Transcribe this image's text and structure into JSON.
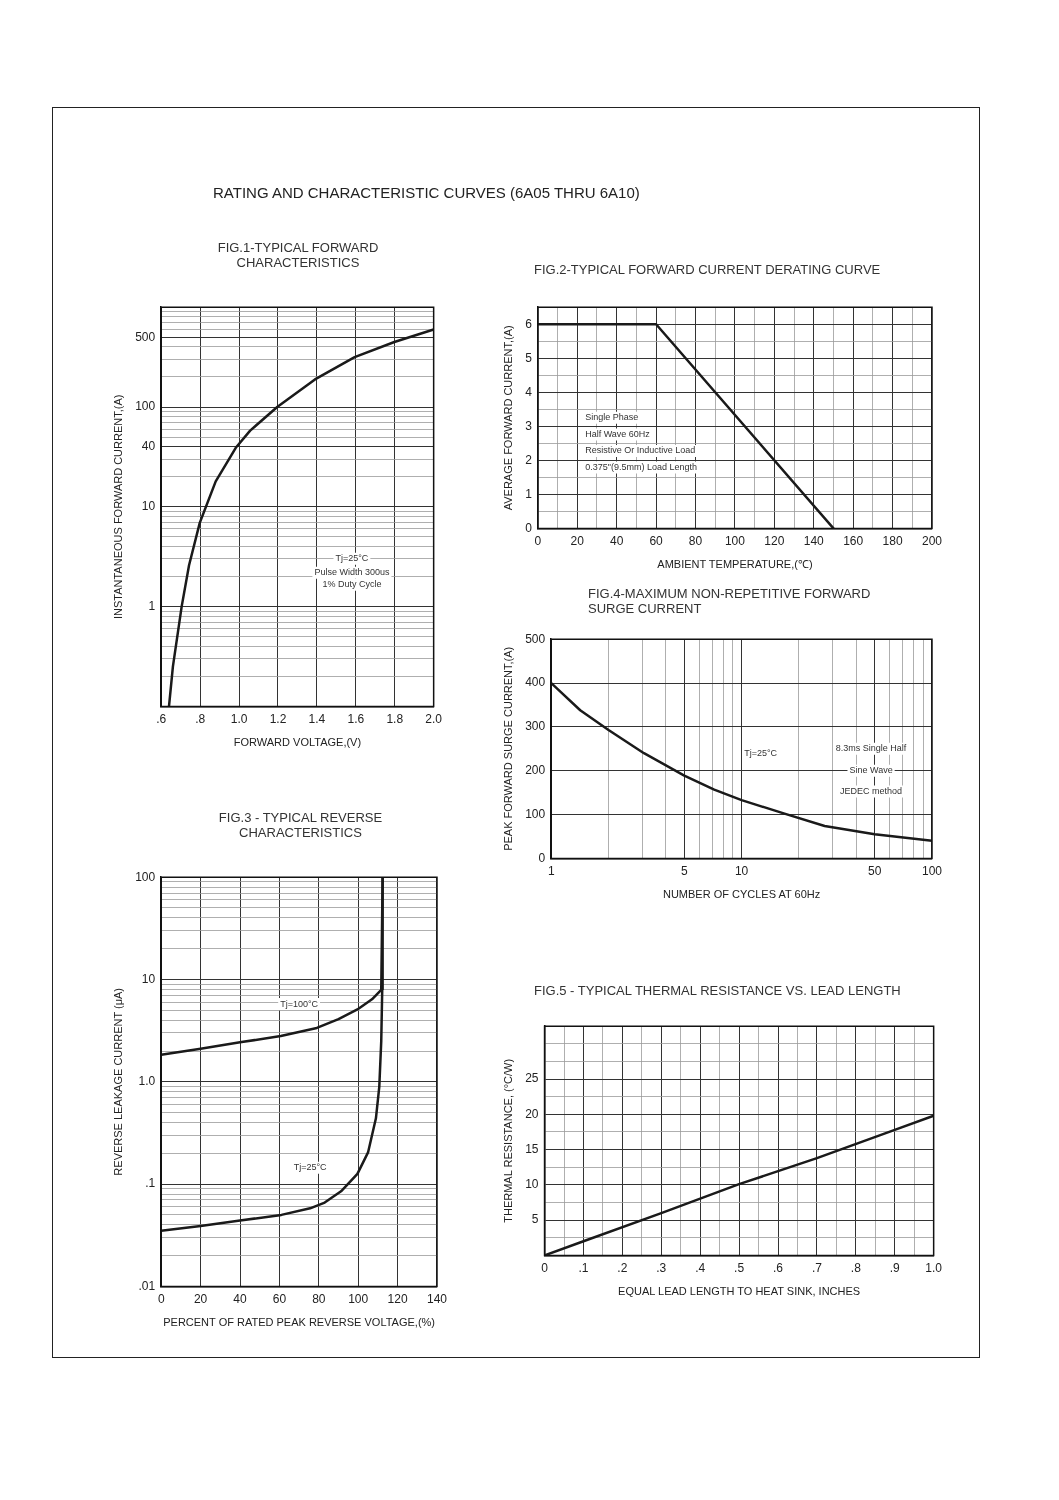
{
  "chart_data": [
    {
      "type": "other",
      "title": "RATING AND CHARACTERISTIC CURVES (6A05 THRU 6A10)"
    },
    {
      "type": "line",
      "title": "FIG.1-TYPICAL FORWARD CHARACTERISTICS",
      "xlabel": "FORWARD VOLTAGE,(V)",
      "ylabel": "INSTANTANEOUS FORWARD CURRENT,(A)",
      "log": "y",
      "grid": true,
      "color": "#1a1a1a",
      "x": [
        0.64,
        0.66,
        0.705,
        0.743,
        0.798,
        0.88,
        0.983,
        1.057,
        1.196,
        1.39,
        1.594,
        1.798,
        2.0
      ],
      "values": [
        0.1,
        0.25,
        1,
        2.6,
        6.9,
        18,
        39,
        58,
        100,
        189,
        316,
        448,
        598
      ],
      "xlim": [
        0.6,
        2.0
      ],
      "xticks": [
        {
          "value": 0.6,
          "label": ".6"
        },
        {
          "value": 0.8,
          "label": ".8"
        },
        {
          "value": 1.0,
          "label": "1.0"
        },
        1.2,
        1.4,
        1.6,
        1.8,
        {
          "value": 2.0,
          "label": "2.0"
        }
      ],
      "ylim": [
        0.1,
        1000
      ],
      "yticks": [
        {
          "value": 0.2,
          "label": null
        },
        {
          "value": 0.3,
          "label": null
        },
        {
          "value": 0.4,
          "label": null
        },
        {
          "value": 0.5,
          "label": null
        },
        {
          "value": 0.6,
          "label": null
        },
        {
          "value": 0.7,
          "label": null
        },
        {
          "value": 0.8,
          "label": null
        },
        {
          "value": 0.9,
          "label": null
        },
        1,
        {
          "value": 2,
          "label": null
        },
        {
          "value": 3,
          "label": null
        },
        {
          "value": 4,
          "label": null
        },
        {
          "value": 5,
          "label": null
        },
        {
          "value": 6,
          "label": null
        },
        {
          "value": 7,
          "label": null
        },
        {
          "value": 8,
          "label": null
        },
        {
          "value": 9,
          "label": null
        },
        10,
        {
          "value": 20,
          "label": null
        },
        {
          "value": 30,
          "label": null
        },
        40,
        {
          "value": 50,
          "label": null
        },
        {
          "value": 60,
          "label": null
        },
        {
          "value": 70,
          "label": null
        },
        {
          "value": 80,
          "label": null
        },
        {
          "value": 90,
          "label": null
        },
        100,
        {
          "value": 200,
          "label": null
        },
        {
          "value": 300,
          "label": null
        },
        {
          "value": 400,
          "label": null
        },
        500,
        {
          "value": 600,
          "label": null
        },
        {
          "value": 700,
          "label": null
        },
        {
          "value": 800,
          "label": null
        },
        {
          "value": 900,
          "label": null
        }
      ],
      "annotations": [
        "Tj=25°C",
        "Pulse Width 300us",
        "1% Duty Cycle"
      ]
    },
    {
      "type": "line",
      "title": "FIG.2-TYPICAL FORWARD CURRENT DERATING CURVE",
      "xlabel": "AMBIENT TEMPERATURE,(℃)",
      "ylabel": "AVERAGE FORWARD CURRENT,(A)",
      "grid": true,
      "color": "#1a1a1a",
      "x": [
        0,
        60,
        150
      ],
      "values": [
        6,
        6,
        0
      ],
      "xlim": [
        0,
        200
      ],
      "xticks": [
        0,
        {
          "value": 10,
          "label": null
        },
        20,
        {
          "value": 30,
          "label": null
        },
        40,
        {
          "value": 50,
          "label": null
        },
        60,
        {
          "value": 70,
          "label": null
        },
        80,
        {
          "value": 90,
          "label": null
        },
        100,
        {
          "value": 110,
          "label": null
        },
        120,
        {
          "value": 130,
          "label": null
        },
        140,
        {
          "value": 150,
          "label": null
        },
        160,
        {
          "value": 170,
          "label": null
        },
        180,
        {
          "value": 190,
          "label": null
        },
        200
      ],
      "ylim": [
        0,
        6.5
      ],
      "yticks": [
        0,
        {
          "value": 0.5,
          "label": null
        },
        1,
        {
          "value": 1.5,
          "label": null
        },
        2,
        {
          "value": 2.5,
          "label": null
        },
        3,
        {
          "value": 3.5,
          "label": null
        },
        4,
        {
          "value": 4.5,
          "label": null
        },
        5,
        {
          "value": 5.5,
          "label": null
        },
        6
      ],
      "annotations": [
        "Single Phase",
        "Half Wave 60Hz",
        "Resistive Or Inductive Load",
        "0.375\"(9.5mm) Load Length"
      ]
    },
    {
      "type": "line",
      "title": "FIG.3 - TYPICAL REVERSE CHARACTERISTICS",
      "xlabel": "PERCENT OF RATED PEAK REVERSE VOLTAGE,(%)",
      "ylabel": "REVERSE LEAKAGE CURRENT (μA)",
      "log": "y",
      "grid": true,
      "series": [
        {
          "name": "Tj=100°C",
          "color": "#1a1a1a",
          "x": [
            0,
            20,
            40,
            60.7,
            79,
            90,
            99.6,
            107,
            111.7,
            112.4
          ],
          "values": [
            1.84,
            2.1,
            2.43,
            2.8,
            3.36,
            4.1,
            5.1,
            6.4,
            7.9,
            100
          ]
        },
        {
          "name": "Tj=25°C",
          "color": "#1a1a1a",
          "x": [
            0,
            20,
            40,
            61,
            75.6,
            83,
            91.3,
            99.6,
            105,
            109,
            110.7,
            111.7,
            112.2,
            112.4
          ],
          "values": [
            0.035,
            0.039,
            0.044,
            0.05,
            0.058,
            0.066,
            0.085,
            0.126,
            0.204,
            0.44,
            0.89,
            2.5,
            8,
            100
          ]
        }
      ],
      "xlim": [
        0,
        140
      ],
      "xticks": [
        0,
        20,
        40,
        60,
        80,
        100,
        120,
        140
      ],
      "ylim": [
        0.01,
        100
      ],
      "yticks": [
        {
          "value": 0.02,
          "label": null
        },
        {
          "value": 0.03,
          "label": null
        },
        {
          "value": 0.04,
          "label": null
        },
        {
          "value": 0.05,
          "label": null
        },
        {
          "value": 0.06,
          "label": null
        },
        {
          "value": 0.07,
          "label": null
        },
        {
          "value": 0.08,
          "label": null
        },
        {
          "value": 0.09,
          "label": null
        },
        {
          "value": 0.1,
          "label": ".1"
        },
        {
          "value": 0.2,
          "label": null
        },
        {
          "value": 0.3,
          "label": null
        },
        {
          "value": 0.4,
          "label": null
        },
        {
          "value": 0.5,
          "label": null
        },
        {
          "value": 0.6,
          "label": null
        },
        {
          "value": 0.7,
          "label": null
        },
        {
          "value": 0.8,
          "label": null
        },
        {
          "value": 0.9,
          "label": null
        },
        {
          "value": 1,
          "label": "1.0"
        },
        {
          "value": 2,
          "label": null
        },
        {
          "value": 3,
          "label": null
        },
        {
          "value": 4,
          "label": null
        },
        {
          "value": 5,
          "label": null
        },
        {
          "value": 6,
          "label": null
        },
        {
          "value": 7,
          "label": null
        },
        {
          "value": 8,
          "label": null
        },
        {
          "value": 9,
          "label": null
        },
        10,
        {
          "value": 20,
          "label": null
        },
        {
          "value": 30,
          "label": null
        },
        {
          "value": 40,
          "label": null
        },
        {
          "value": 50,
          "label": null
        },
        {
          "value": 60,
          "label": null
        },
        {
          "value": 70,
          "label": null
        },
        {
          "value": 80,
          "label": null
        },
        {
          "value": 90,
          "label": null
        },
        100,
        {
          "value": 0.01,
          "label": ".01"
        }
      ]
    },
    {
      "type": "line",
      "title": "FIG.4-MAXIMUM NON-REPETITIVE FORWARD SURGE CURRENT",
      "xlabel": "NUMBER OF CYCLES AT 60Hz",
      "ylabel": "PEAK FORWARD SURGE CURRENT,(A)",
      "log": "x",
      "grid": true,
      "color": "#1a1a1a",
      "x": [
        1,
        1.42,
        2,
        3.07,
        5,
        7.18,
        10,
        16.8,
        27.3,
        50,
        100
      ],
      "values": [
        400,
        338,
        293,
        240,
        189,
        157,
        133,
        102,
        74,
        55,
        40
      ],
      "xlim": [
        1,
        100
      ],
      "xticks": [
        1,
        {
          "value": 2,
          "label": null
        },
        {
          "value": 3,
          "label": null
        },
        {
          "value": 4,
          "label": null
        },
        5,
        {
          "value": 6,
          "label": null
        },
        {
          "value": 7,
          "label": null
        },
        {
          "value": 8,
          "label": null
        },
        {
          "value": 9,
          "label": null
        },
        10,
        {
          "value": 20,
          "label": null
        },
        {
          "value": 30,
          "label": null
        },
        {
          "value": 40,
          "label": null
        },
        50,
        {
          "value": 60,
          "label": null
        },
        {
          "value": 70,
          "label": null
        },
        {
          "value": 80,
          "label": null
        },
        {
          "value": 90,
          "label": null
        },
        100
      ],
      "ylim": [
        0,
        500
      ],
      "yticks": [
        0,
        100,
        200,
        300,
        400,
        500
      ],
      "annotations": [
        "Tj=25°C",
        "8.3ms Single Half",
        "Sine Wave",
        "JEDEC method"
      ]
    },
    {
      "type": "line",
      "title": "FIG.5 - TYPICAL THERMAL RESISTANCE VS. LEAD LENGTH",
      "xlabel": "EQUAL LEAD LENGTH TO HEAT SINK, INCHES",
      "ylabel": "THERMAL RESISTANCE, (°C/W)",
      "grid": true,
      "color": "#1a1a1a",
      "x": [
        0,
        0.1,
        0.3,
        0.5,
        0.7,
        0.9,
        1.0
      ],
      "values": [
        0,
        2.0,
        6.0,
        10.1,
        13.8,
        17.8,
        19.8
      ],
      "xlim": [
        0,
        1.0
      ],
      "xticks": [
        0,
        {
          "value": 0.05,
          "label": null
        },
        {
          "value": 0.1,
          "label": ".1"
        },
        {
          "value": 0.15,
          "label": null
        },
        {
          "value": 0.2,
          "label": ".2"
        },
        {
          "value": 0.25,
          "label": null
        },
        {
          "value": 0.3,
          "label": ".3"
        },
        {
          "value": 0.35,
          "label": null
        },
        {
          "value": 0.4,
          "label": ".4"
        },
        {
          "value": 0.45,
          "label": null
        },
        {
          "value": 0.5,
          "label": ".5"
        },
        {
          "value": 0.55,
          "label": null
        },
        {
          "value": 0.6,
          "label": ".6"
        },
        {
          "value": 0.65,
          "label": null
        },
        {
          "value": 0.7,
          "label": ".7"
        },
        {
          "value": 0.75,
          "label": null
        },
        {
          "value": 0.8,
          "label": ".8"
        },
        {
          "value": 0.85,
          "label": null
        },
        {
          "value": 0.9,
          "label": ".9"
        },
        {
          "value": 0.95,
          "label": null
        },
        {
          "value": 1.0,
          "label": "1.0"
        }
      ],
      "ylim": [
        0,
        32.5
      ],
      "yticks": [
        {
          "value": 0,
          "label": null
        },
        {
          "value": 2.5,
          "label": null
        },
        5,
        {
          "value": 7.5,
          "label": null
        },
        10,
        {
          "value": 12.5,
          "label": null
        },
        15,
        {
          "value": 17.5,
          "label": null
        },
        20,
        {
          "value": 22.5,
          "label": null
        },
        25,
        {
          "value": 27.5,
          "label": null
        },
        {
          "value": 30,
          "label": null
        }
      ]
    }
  ]
}
